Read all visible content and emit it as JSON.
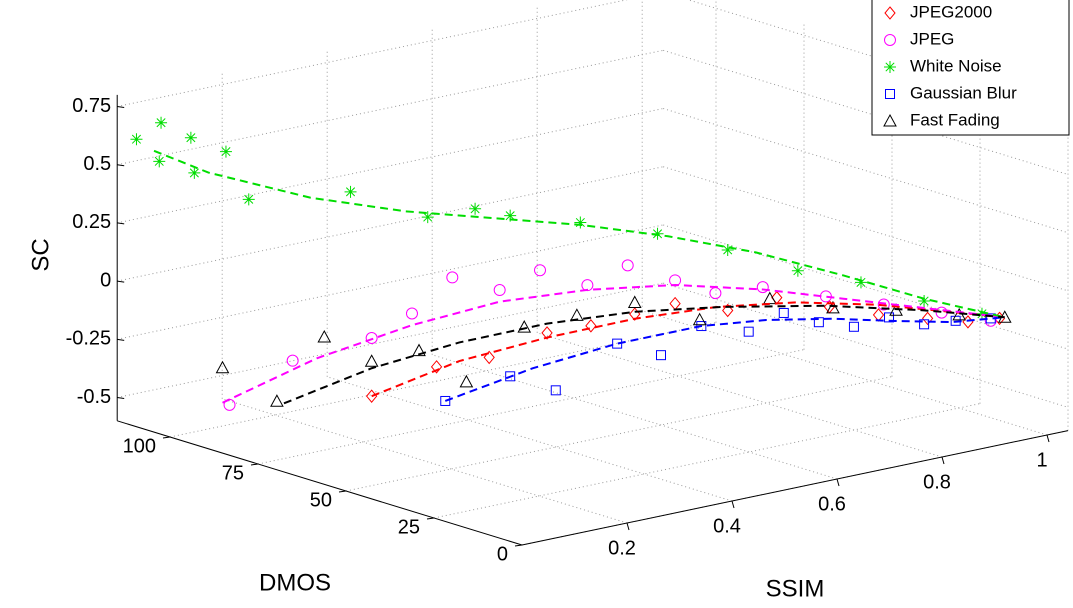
{
  "chart_data": {
    "type": "scatter3d",
    "xlabel": "SSIM",
    "ylabel": "DMOS",
    "zlabel": "SC",
    "xlim": [
      0,
      1.04
    ],
    "ylim": [
      0,
      115
    ],
    "zlim": [
      -0.6,
      0.8
    ],
    "xticks": [
      0.2,
      0.4,
      0.6,
      0.8,
      1
    ],
    "yticks": [
      0,
      25,
      50,
      75,
      100
    ],
    "zticks": [
      -0.5,
      -0.25,
      0,
      0.25,
      0.5,
      0.75
    ],
    "grid": true,
    "legend": "upper right",
    "series": [
      {
        "name": "JPEG2000",
        "color": "#ff0000",
        "marker": "diamond",
        "ssim": [
          0.25,
          0.32,
          0.38,
          0.45,
          0.5,
          0.55,
          0.6,
          0.66,
          0.72,
          0.78,
          0.84,
          0.9,
          0.95,
          0.99
        ],
        "dmos": [
          80,
          72,
          66,
          60,
          55,
          50,
          46,
          40,
          35,
          29,
          24,
          19,
          15,
          12
        ],
        "sc": [
          -0.45,
          -0.32,
          -0.28,
          -0.18,
          -0.15,
          -0.1,
          -0.06,
          -0.09,
          -0.04,
          -0.08,
          -0.12,
          -0.14,
          -0.16,
          -0.15
        ],
        "fit": {
          "ssim": [
            0.25,
            0.35,
            0.45,
            0.55,
            0.65,
            0.75,
            0.85,
            0.93,
            1
          ],
          "dmos": [
            80,
            70,
            60,
            50,
            42,
            34,
            26,
            18,
            12
          ],
          "sc": [
            -0.45,
            -0.3,
            -0.2,
            -0.12,
            -0.08,
            -0.07,
            -0.09,
            -0.12,
            -0.15
          ]
        }
      },
      {
        "name": "JPEG",
        "color": "#ff00ff",
        "marker": "circle",
        "ssim": [
          0.1,
          0.18,
          0.25,
          0.3,
          0.35,
          0.4,
          0.45,
          0.5,
          0.55,
          0.6,
          0.65,
          0.7,
          0.78,
          0.85,
          0.92,
          0.98
        ],
        "dmos": [
          98,
          92,
          80,
          76,
          72,
          66,
          62,
          56,
          52,
          46,
          42,
          36,
          30,
          24,
          18,
          13
        ],
        "sc": [
          -0.5,
          -0.32,
          -0.2,
          -0.1,
          0.05,
          0.0,
          0.08,
          0.02,
          0.1,
          0.04,
          -0.02,
          0.01,
          -0.04,
          -0.08,
          -0.12,
          -0.16
        ],
        "fit": {
          "ssim": [
            0.1,
            0.2,
            0.3,
            0.4,
            0.5,
            0.6,
            0.7,
            0.8,
            0.9,
            1
          ],
          "dmos": [
            100,
            88,
            76,
            66,
            56,
            46,
            36,
            28,
            20,
            12
          ],
          "sc": [
            -0.5,
            -0.3,
            -0.15,
            -0.05,
            0.0,
            0.02,
            0.0,
            -0.05,
            -0.1,
            -0.15
          ]
        }
      },
      {
        "name": "White Noise",
        "color": "#00dd00",
        "marker": "star",
        "ssim": [
          0.03,
          0.05,
          0.06,
          0.08,
          0.1,
          0.12,
          0.15,
          0.25,
          0.33,
          0.38,
          0.42,
          0.5,
          0.58,
          0.66,
          0.74,
          0.82,
          0.9,
          0.97
        ],
        "dmos": [
          114,
          110,
          112,
          106,
          108,
          102,
          100,
          86,
          76,
          70,
          66,
          58,
          48,
          40,
          32,
          26,
          20,
          14
        ],
        "sc": [
          0.6,
          0.68,
          0.5,
          0.62,
          0.45,
          0.56,
          0.35,
          0.4,
          0.3,
          0.34,
          0.31,
          0.28,
          0.24,
          0.17,
          0.08,
          0.02,
          -0.07,
          -0.13
        ],
        "fit": {
          "ssim": [
            0.05,
            0.1,
            0.2,
            0.3,
            0.4,
            0.5,
            0.6,
            0.7,
            0.8,
            0.9,
            1.0
          ],
          "dmos": [
            112,
            104,
            90,
            78,
            68,
            58,
            48,
            38,
            28,
            20,
            12
          ],
          "sc": [
            0.55,
            0.47,
            0.38,
            0.33,
            0.3,
            0.27,
            0.22,
            0.15,
            0.05,
            -0.06,
            -0.15
          ]
        }
      },
      {
        "name": "Gaussian Blur",
        "color": "#0000ff",
        "marker": "square",
        "ssim": [
          0.35,
          0.42,
          0.48,
          0.55,
          0.6,
          0.65,
          0.7,
          0.74,
          0.78,
          0.82,
          0.86,
          0.9,
          0.94,
          0.98
        ],
        "dmos": [
          74,
          66,
          62,
          55,
          50,
          46,
          40,
          36,
          32,
          28,
          24,
          20,
          17,
          13
        ],
        "sc": [
          -0.49,
          -0.38,
          -0.45,
          -0.25,
          -0.3,
          -0.18,
          -0.2,
          -0.12,
          -0.16,
          -0.18,
          -0.14,
          -0.17,
          -0.16,
          -0.15
        ],
        "fit": {
          "ssim": [
            0.35,
            0.45,
            0.55,
            0.65,
            0.72,
            0.8,
            0.87,
            0.94,
            1
          ],
          "dmos": [
            74,
            64,
            55,
            46,
            38,
            31,
            24,
            18,
            12
          ],
          "sc": [
            -0.49,
            -0.35,
            -0.25,
            -0.18,
            -0.15,
            -0.15,
            -0.16,
            -0.17,
            -0.15
          ]
        }
      },
      {
        "name": "Fast Fading",
        "color": "#000000",
        "marker": "triangle",
        "ssim": [
          0.1,
          0.15,
          0.2,
          0.25,
          0.3,
          0.35,
          0.42,
          0.48,
          0.55,
          0.62,
          0.7,
          0.78,
          0.86,
          0.94,
          1.0
        ],
        "dmos": [
          100,
          92,
          86,
          80,
          74,
          68,
          62,
          56,
          50,
          42,
          34,
          28,
          22,
          16,
          12
        ],
        "sc": [
          -0.35,
          -0.48,
          -0.2,
          -0.3,
          -0.25,
          -0.38,
          -0.15,
          -0.1,
          -0.05,
          -0.12,
          -0.03,
          -0.08,
          -0.1,
          -0.13,
          -0.15
        ],
        "fit": {
          "ssim": [
            0.15,
            0.25,
            0.35,
            0.45,
            0.55,
            0.65,
            0.78,
            0.9,
            1
          ],
          "dmos": [
            90,
            80,
            70,
            60,
            50,
            40,
            30,
            20,
            12
          ],
          "sc": [
            -0.48,
            -0.33,
            -0.22,
            -0.14,
            -0.09,
            -0.07,
            -0.08,
            -0.11,
            -0.15
          ]
        }
      }
    ]
  }
}
